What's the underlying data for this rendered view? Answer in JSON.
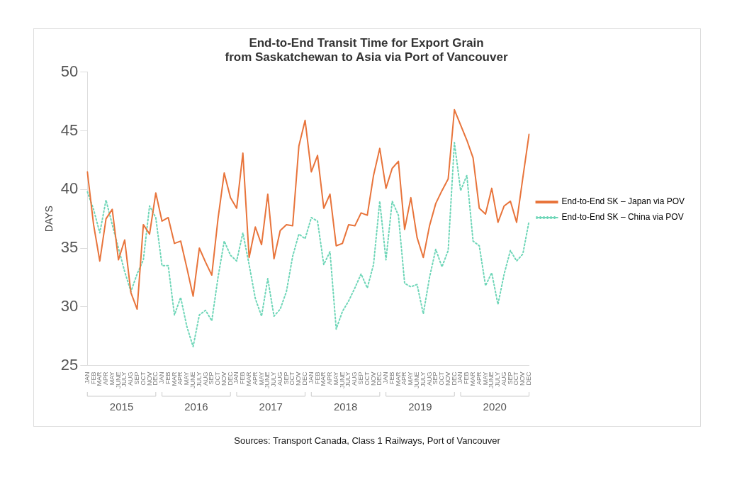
{
  "chart_data": {
    "type": "line",
    "title": [
      "End-to-End Transit Time for Export Grain",
      "from Saskatchewan to Asia via Port of Vancouver"
    ],
    "ylabel": "DAYS",
    "categories": [
      "JAN",
      "FEB",
      "MAR",
      "APR",
      "MAY",
      "JUNE",
      "JULY",
      "AUG",
      "SEP",
      "OCT",
      "NOV",
      "DEC",
      "JAN",
      "FEB",
      "MAR",
      "APR",
      "MAY",
      "JUNE",
      "JULY",
      "AUG",
      "SEP",
      "OCT",
      "NOV",
      "DEC",
      "JAN",
      "FEB",
      "MAR",
      "APR",
      "MAY",
      "JUNE",
      "JULY",
      "AUG",
      "SEP",
      "OCT",
      "NOV",
      "DEC",
      "JAN",
      "FEB",
      "MAR",
      "APR",
      "MAY",
      "JUNE",
      "JULY",
      "AUG",
      "SEP",
      "OCT",
      "NOV",
      "DEC",
      "JAN",
      "FEB",
      "MAR",
      "APR",
      "MAY",
      "JUNE",
      "JULY",
      "AUG",
      "SEP",
      "OCT",
      "NOV",
      "DEC",
      "JAN",
      "FEB",
      "MAR",
      "APR",
      "MAY",
      "JUNE",
      "JULY",
      "AUG",
      "SEP",
      "OCT",
      "NOV",
      "DEC"
    ],
    "series": [
      {
        "name": "End-to-End SK – Japan via POV",
        "color": "#e8743b",
        "line_style": "solid",
        "values": [
          41.5,
          37.0,
          33.9,
          37.5,
          38.3,
          34.0,
          35.7,
          31.2,
          29.8,
          37.0,
          36.2,
          39.7,
          37.3,
          37.6,
          35.4,
          35.6,
          33.3,
          30.9,
          35.0,
          33.8,
          32.7,
          37.5,
          41.4,
          39.3,
          38.4,
          43.1,
          34.2,
          36.8,
          35.3,
          39.6,
          34.1,
          36.5,
          37.0,
          36.9,
          43.7,
          45.9,
          41.5,
          42.9,
          38.4,
          39.6,
          35.2,
          35.4,
          37.0,
          36.9,
          38.0,
          37.8,
          41.2,
          43.5,
          40.1,
          41.8,
          42.4,
          36.6,
          39.3,
          35.9,
          34.2,
          36.9,
          38.8,
          39.9,
          40.9,
          46.8,
          45.5,
          44.2,
          42.7,
          38.4,
          37.9,
          40.1,
          37.2,
          38.6,
          39.0,
          37.2,
          41.0,
          44.7
        ]
      },
      {
        "name": "End-to-End SK – China via POV",
        "color": "#6fd6b8",
        "line_style": "dotted",
        "values": [
          39.8,
          38.3,
          36.3,
          39.1,
          37.0,
          35.0,
          33.0,
          31.3,
          32.8,
          34.0,
          38.6,
          37.6,
          33.5,
          33.5,
          29.3,
          30.8,
          28.3,
          26.6,
          29.3,
          29.7,
          28.8,
          32.5,
          35.6,
          34.4,
          33.9,
          36.3,
          33.6,
          30.7,
          29.2,
          32.4,
          29.2,
          29.8,
          31.3,
          34.3,
          36.2,
          35.8,
          37.6,
          37.3,
          33.6,
          34.7,
          28.1,
          29.6,
          30.5,
          31.6,
          32.8,
          31.6,
          33.6,
          39.0,
          34.0,
          39.0,
          37.8,
          32.0,
          31.7,
          31.9,
          29.4,
          32.5,
          34.9,
          33.4,
          34.8,
          44.0,
          39.9,
          41.2,
          35.6,
          35.2,
          31.8,
          32.9,
          30.2,
          32.8,
          34.8,
          33.9,
          34.5,
          37.3
        ]
      }
    ],
    "ylim": [
      25,
      50
    ],
    "yticks": [
      25,
      30,
      35,
      40,
      45,
      50
    ],
    "grid": false,
    "legend": "right",
    "marker": "none",
    "annotations": [
      "2015",
      "2016",
      "2017",
      "2018",
      "2019",
      "2020",
      "Sources: Transport Canada, Class 1 Railways, Port of Vancouver"
    ]
  }
}
